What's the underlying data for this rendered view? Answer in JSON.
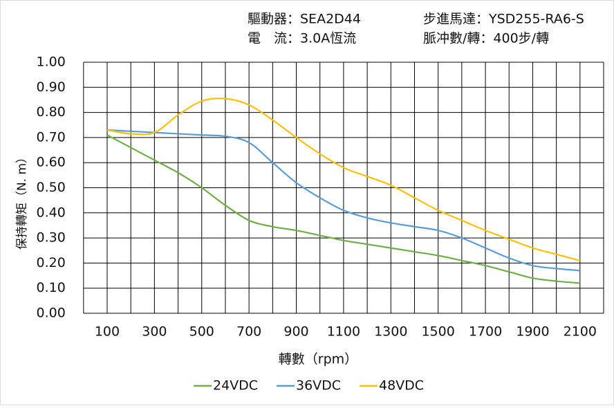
{
  "chart_data": {
    "type": "line",
    "header": [
      "驅動器：SEA2D44",
      "步進馬達：YSD255-RA6-S",
      "電　流：3.0A恆流",
      "脈冲數/轉：400步/轉"
    ],
    "xlabel": "轉數（rpm）",
    "ylabel": "保持轉矩（N. m）",
    "x": [
      100,
      200,
      300,
      400,
      500,
      600,
      700,
      800,
      900,
      1000,
      1100,
      1200,
      1300,
      1400,
      1500,
      1600,
      1700,
      1800,
      1900,
      2000,
      2100
    ],
    "series": [
      {
        "name": "24VDC",
        "color": "#70ad47",
        "values": [
          0.71,
          0.66,
          0.61,
          0.56,
          0.5,
          0.43,
          0.37,
          0.345,
          0.33,
          0.31,
          0.29,
          0.275,
          0.26,
          0.245,
          0.23,
          0.21,
          0.19,
          0.165,
          0.14,
          0.128,
          0.12
        ]
      },
      {
        "name": "36VDC",
        "color": "#5b9bd5",
        "values": [
          0.73,
          0.725,
          0.72,
          0.715,
          0.71,
          0.705,
          0.68,
          0.6,
          0.52,
          0.46,
          0.41,
          0.38,
          0.36,
          0.345,
          0.33,
          0.3,
          0.26,
          0.22,
          0.19,
          0.178,
          0.17
        ]
      },
      {
        "name": "48VDC",
        "color": "#ffc000",
        "values": [
          0.73,
          0.715,
          0.72,
          0.79,
          0.845,
          0.855,
          0.83,
          0.77,
          0.7,
          0.635,
          0.58,
          0.545,
          0.51,
          0.46,
          0.41,
          0.37,
          0.33,
          0.295,
          0.26,
          0.235,
          0.21
        ]
      }
    ],
    "xlim": [
      0,
      2200
    ],
    "xticks": [
      100,
      300,
      500,
      700,
      900,
      1100,
      1300,
      1500,
      1700,
      1900,
      2100
    ],
    "xgrid": [
      0,
      200,
      400,
      600,
      800,
      1000,
      1200,
      1400,
      1600,
      1800,
      2000,
      2200
    ],
    "ylim": [
      0,
      1
    ],
    "yticks": [
      {
        "value": 0,
        "label": "0.00"
      },
      {
        "value": 0.1,
        "label": "0.10"
      },
      {
        "value": 0.2,
        "label": "0.20"
      },
      {
        "value": 0.3,
        "label": "0.30"
      },
      {
        "value": 0.4,
        "label": "0.40"
      },
      {
        "value": 0.5,
        "label": "0.50"
      },
      {
        "value": 0.6,
        "label": "0.60"
      },
      {
        "value": 0.7,
        "label": "0.70"
      },
      {
        "value": 0.8,
        "label": "0.80"
      },
      {
        "value": 0.9,
        "label": "0.90"
      },
      {
        "value": 1,
        "label": "1.00"
      }
    ],
    "grid": true
  }
}
